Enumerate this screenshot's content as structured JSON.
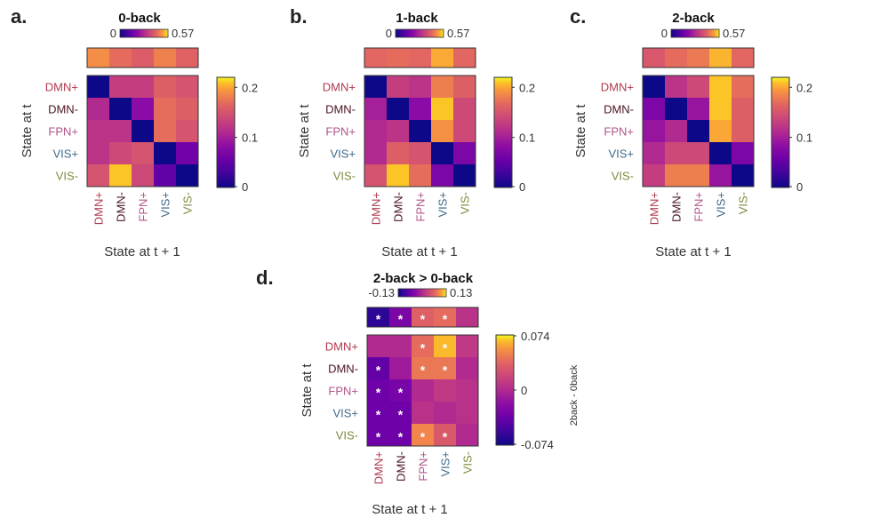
{
  "colors": {
    "DMN+": "#b03a4e",
    "DMN-": "#4a1420",
    "FPN+": "#b0568c",
    "VIS+": "#3d6a8a",
    "VIS-": "#7d8a3c"
  },
  "states": [
    "DMN+",
    "DMN-",
    "FPN+",
    "VIS+",
    "VIS-"
  ],
  "y_axis_label": "State at t",
  "x_axis_label": "State at t + 1",
  "star_symbol": "*",
  "chart_data": [
    {
      "type": "heatmap",
      "panel_label": "a.",
      "title": "0-back",
      "xlabel": "State at t + 1",
      "ylabel": "State at t",
      "categories": [
        "DMN+",
        "DMN-",
        "FPN+",
        "VIS+",
        "VIS-"
      ],
      "top_bar": {
        "range": [
          0,
          0.57
        ],
        "range_labels": [
          "0",
          "0.57"
        ],
        "values": [
          0.49,
          0.44,
          0.41,
          0.47,
          0.42
        ]
      },
      "colorbar": {
        "range": [
          0,
          0.22
        ],
        "ticks": [
          0,
          0.1,
          0.2
        ],
        "tick_labels": [
          "0",
          "0.1",
          "0.2"
        ]
      },
      "matrix": [
        [
          0.0,
          0.13,
          0.13,
          0.16,
          0.15
        ],
        [
          0.11,
          0.0,
          0.08,
          0.17,
          0.16
        ],
        [
          0.12,
          0.12,
          0.0,
          0.17,
          0.15
        ],
        [
          0.12,
          0.14,
          0.15,
          0.0,
          0.06
        ],
        [
          0.15,
          0.21,
          0.14,
          0.05,
          0.0
        ]
      ]
    },
    {
      "type": "heatmap",
      "panel_label": "b.",
      "title": "1-back",
      "xlabel": "State at t + 1",
      "ylabel": "State at t",
      "categories": [
        "DMN+",
        "DMN-",
        "FPN+",
        "VIS+",
        "VIS-"
      ],
      "top_bar": {
        "range": [
          0,
          0.57
        ],
        "range_labels": [
          "0",
          "0.57"
        ],
        "values": [
          0.43,
          0.44,
          0.43,
          0.52,
          0.43
        ]
      },
      "colorbar": {
        "range": [
          0,
          0.22
        ],
        "ticks": [
          0,
          0.1,
          0.2
        ],
        "tick_labels": [
          "0",
          "0.1",
          "0.2"
        ]
      },
      "matrix": [
        [
          0.0,
          0.13,
          0.12,
          0.18,
          0.16
        ],
        [
          0.1,
          0.0,
          0.08,
          0.21,
          0.14
        ],
        [
          0.11,
          0.12,
          0.0,
          0.19,
          0.14
        ],
        [
          0.11,
          0.16,
          0.15,
          0.0,
          0.07
        ],
        [
          0.15,
          0.21,
          0.17,
          0.07,
          0.0
        ]
      ]
    },
    {
      "type": "heatmap",
      "panel_label": "c.",
      "title": "2-back",
      "xlabel": "State at t + 1",
      "ylabel": "State at t",
      "categories": [
        "DMN+",
        "DMN-",
        "FPN+",
        "VIS+",
        "VIS-"
      ],
      "top_bar": {
        "range": [
          0,
          0.57
        ],
        "range_labels": [
          "0",
          "0.57"
        ],
        "values": [
          0.4,
          0.44,
          0.46,
          0.53,
          0.43
        ]
      },
      "colorbar": {
        "range": [
          0,
          0.22
        ],
        "ticks": [
          0,
          0.1,
          0.2
        ],
        "tick_labels": [
          "0",
          "0.1",
          "0.2"
        ]
      },
      "matrix": [
        [
          0.0,
          0.12,
          0.14,
          0.21,
          0.17
        ],
        [
          0.07,
          0.0,
          0.09,
          0.21,
          0.16
        ],
        [
          0.09,
          0.11,
          0.0,
          0.2,
          0.16
        ],
        [
          0.11,
          0.14,
          0.14,
          0.0,
          0.07
        ],
        [
          0.13,
          0.18,
          0.18,
          0.09,
          0.0
        ]
      ]
    },
    {
      "type": "heatmap",
      "panel_label": "d.",
      "title": "2-back > 0-back",
      "xlabel": "State at t + 1",
      "ylabel": "State at t",
      "categories": [
        "DMN+",
        "DMN-",
        "FPN+",
        "VIS+",
        "VIS-"
      ],
      "colorbar_label": "2back - 0back",
      "top_bar": {
        "range": [
          -0.13,
          0.13
        ],
        "range_labels": [
          "-0.13",
          "0.13"
        ],
        "values": [
          -0.11,
          -0.05,
          0.06,
          0.07,
          0.01
        ],
        "significant": [
          true,
          true,
          true,
          true,
          false
        ]
      },
      "colorbar": {
        "range": [
          -0.074,
          0.074
        ],
        "ticks": [
          -0.074,
          0,
          0.074
        ],
        "tick_labels": [
          "-0.074",
          "0",
          "0.074"
        ]
      },
      "matrix": [
        [
          0.0,
          0.0,
          0.04,
          0.065,
          0.01
        ],
        [
          -0.04,
          -0.01,
          0.045,
          0.045,
          0.0
        ],
        [
          -0.035,
          -0.03,
          0.0,
          0.01,
          0.005
        ],
        [
          -0.035,
          -0.035,
          0.005,
          0.0,
          0.005
        ],
        [
          -0.035,
          -0.035,
          0.05,
          0.03,
          0.0
        ]
      ],
      "significant": [
        [
          false,
          false,
          true,
          true,
          false
        ],
        [
          true,
          false,
          true,
          true,
          false
        ],
        [
          true,
          true,
          false,
          false,
          false
        ],
        [
          true,
          true,
          false,
          false,
          false
        ],
        [
          true,
          true,
          true,
          true,
          false
        ]
      ]
    }
  ]
}
